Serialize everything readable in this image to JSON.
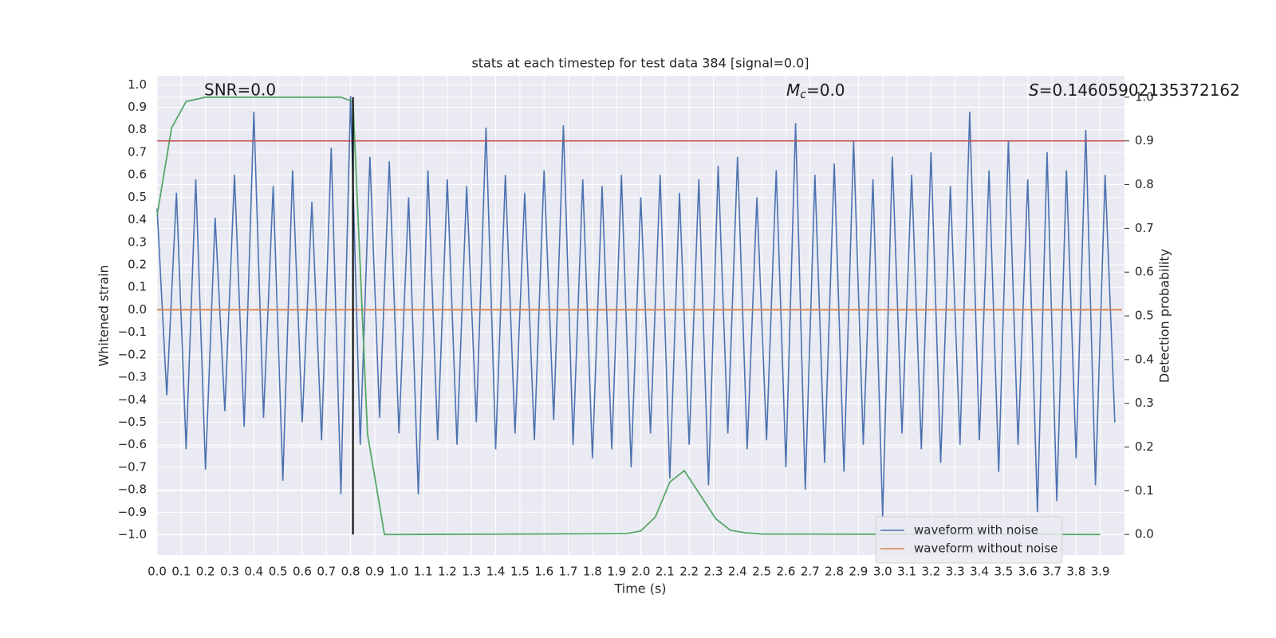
{
  "chart_data": {
    "type": "line",
    "title": "stats at each timestep for test data 384 [signal=0.0]",
    "xlabel": "Time (s)",
    "ylabel": "Whitened strain",
    "y2label": "Detection probability",
    "annotations": {
      "snr": "SNR=0.0",
      "mc": {
        "symbol": "M",
        "subscript": "c",
        "text": "=0.0"
      },
      "s": {
        "symbol": "S",
        "text": "=0.14605902135372162"
      }
    },
    "xlim": [
      0,
      4.0
    ],
    "ylim": [
      -1.09,
      1.04
    ],
    "y2lim": [
      -0.047,
      1.049
    ],
    "grid": true,
    "legend": "lower right",
    "xticks": [
      {
        "value": 0,
        "label": "0.0"
      },
      0.1,
      0.2,
      0.3,
      0.4,
      0.5,
      0.6,
      0.7,
      0.8,
      0.9,
      {
        "value": 1,
        "label": "1.0"
      },
      1.1,
      1.2,
      1.3,
      1.4,
      1.5,
      1.6,
      1.7,
      1.8,
      1.9,
      {
        "value": 2,
        "label": "2.0"
      },
      2.1,
      2.2,
      2.3,
      2.4,
      2.5,
      2.6,
      2.7,
      2.8,
      2.9,
      {
        "value": 3,
        "label": "3.0"
      },
      3.1,
      3.2,
      3.3,
      3.4,
      3.5,
      3.6,
      3.7,
      3.8,
      3.9
    ],
    "yticks": [
      {
        "value": -1,
        "label": "−1.0"
      },
      {
        "value": -0.9,
        "label": "−0.9"
      },
      {
        "value": -0.8,
        "label": "−0.8"
      },
      {
        "value": -0.7,
        "label": "−0.7"
      },
      {
        "value": -0.6,
        "label": "−0.6"
      },
      {
        "value": -0.5,
        "label": "−0.5"
      },
      {
        "value": -0.4,
        "label": "−0.4"
      },
      {
        "value": -0.3,
        "label": "−0.3"
      },
      {
        "value": -0.2,
        "label": "−0.2"
      },
      {
        "value": -0.1,
        "label": "−0.1"
      },
      {
        "value": 0,
        "label": "0.0"
      },
      0.1,
      0.2,
      0.3,
      0.4,
      0.5,
      0.6,
      0.7,
      0.8,
      0.9,
      {
        "value": 1,
        "label": "1.0"
      }
    ],
    "y2ticks": [
      {
        "value": 0,
        "label": "0.0"
      },
      0.1,
      0.2,
      0.3,
      0.4,
      0.5,
      0.6,
      0.7,
      0.8,
      0.9,
      {
        "value": 1,
        "label": "1.0"
      }
    ],
    "series": [
      {
        "name": "waveform with noise",
        "color": "#4c72b0",
        "x": [
          0,
          0.04,
          0.08,
          0.12,
          0.16,
          0.2,
          0.24,
          0.28,
          0.32,
          0.36,
          0.4,
          0.44,
          0.48,
          0.52,
          0.56,
          0.6,
          0.64,
          0.68,
          0.72,
          0.76,
          0.8,
          0.84,
          0.88,
          0.92,
          0.96,
          1,
          1.04,
          1.08,
          1.12,
          1.16,
          1.2,
          1.24,
          1.28,
          1.32,
          1.36,
          1.4,
          1.44,
          1.48,
          1.52,
          1.56,
          1.6,
          1.64,
          1.68,
          1.72,
          1.76,
          1.8,
          1.84,
          1.88,
          1.92,
          1.96,
          2,
          2.04,
          2.08,
          2.12,
          2.16,
          2.2,
          2.24,
          2.28,
          2.32,
          2.36,
          2.4,
          2.44,
          2.48,
          2.52,
          2.56,
          2.6,
          2.64,
          2.68,
          2.72,
          2.76,
          2.8,
          2.84,
          2.88,
          2.92,
          2.96,
          3,
          3.04,
          3.08,
          3.12,
          3.16,
          3.2,
          3.24,
          3.28,
          3.32,
          3.36,
          3.4,
          3.44,
          3.48,
          3.52,
          3.56,
          3.6,
          3.64,
          3.68,
          3.72,
          3.76,
          3.8,
          3.84,
          3.88,
          3.92,
          3.96
        ],
        "values": [
          0.45,
          -0.38,
          0.52,
          -0.62,
          0.58,
          -0.71,
          0.41,
          -0.45,
          0.6,
          -0.52,
          0.88,
          -0.48,
          0.55,
          -0.76,
          0.62,
          -0.5,
          0.48,
          -0.58,
          0.72,
          -0.82,
          0.95,
          -0.6,
          0.68,
          -0.48,
          0.66,
          -0.55,
          0.5,
          -0.82,
          0.62,
          -0.58,
          0.58,
          -0.6,
          0.55,
          -0.5,
          0.81,
          -0.62,
          0.6,
          -0.55,
          0.52,
          -0.58,
          0.62,
          -0.49,
          0.82,
          -0.6,
          0.58,
          -0.66,
          0.55,
          -0.62,
          0.6,
          -0.7,
          0.5,
          -0.55,
          0.6,
          -0.75,
          0.52,
          -0.6,
          0.58,
          -0.78,
          0.64,
          -0.55,
          0.68,
          -0.62,
          0.5,
          -0.58,
          0.62,
          -0.7,
          0.83,
          -0.8,
          0.6,
          -0.68,
          0.65,
          -0.72,
          0.75,
          -0.6,
          0.58,
          -0.92,
          0.68,
          -0.55,
          0.6,
          -0.62,
          0.7,
          -0.68,
          0.55,
          -0.6,
          0.88,
          -0.58,
          0.62,
          -0.72,
          0.75,
          -0.6,
          0.58,
          -0.9,
          0.7,
          -0.85,
          0.62,
          -0.66,
          0.8,
          -0.78,
          0.6,
          -0.5
        ]
      },
      {
        "name": "waveform without noise",
        "color": "#dd8452",
        "x": [
          0,
          3.99
        ],
        "values": [
          0,
          0
        ]
      },
      {
        "color": "#55a868",
        "axis": "y2",
        "x": [
          0,
          0.06,
          0.12,
          0.2,
          0.76,
          0.81,
          0.87,
          0.94,
          1.0,
          1.5,
          1.94,
          2.0,
          2.06,
          2.12,
          2.18,
          2.31,
          2.37,
          2.43,
          2.5,
          3.9
        ],
        "values": [
          0.73,
          0.93,
          0.99,
          1.0,
          1.0,
          0.99,
          0.23,
          0.0,
          0.0,
          0.001,
          0.002,
          0.008,
          0.04,
          0.12,
          0.146,
          0.036,
          0.01,
          0.004,
          0.001,
          0.0
        ]
      }
    ],
    "hlines": [
      {
        "value": 0.9,
        "axis": "y2",
        "color": "#c44e52"
      }
    ],
    "vlines": [
      {
        "x": 0.81,
        "ymin": 0,
        "ymax": 1,
        "axis": "y2",
        "color": "#000000"
      }
    ]
  }
}
